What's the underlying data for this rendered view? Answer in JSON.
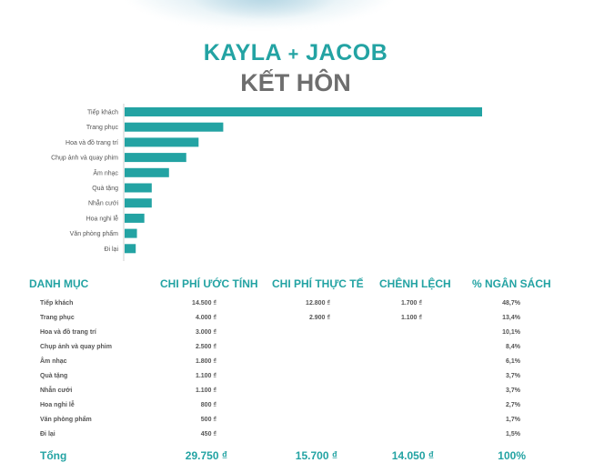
{
  "header": {
    "line1_names": "KAYLA",
    "line1_plus": "+",
    "line1_names2": "JACOB",
    "line2": "KẾT HÔN"
  },
  "colors": {
    "accent": "#23a3a3",
    "title_gray": "#6e6e6e",
    "bar": "#23a3a3"
  },
  "chart_data": {
    "type": "bar",
    "orientation": "horizontal",
    "categories": [
      "Tiếp khách",
      "Trang phục",
      "Hoa và đồ trang trí",
      "Chụp ảnh và quay phim",
      "Âm nhạc",
      "Quà tặng",
      "Nhẫn cưới",
      "Hoa nghi lễ",
      "Văn phòng phẩm",
      "Đi lại"
    ],
    "values": [
      14500,
      4000,
      3000,
      2500,
      1800,
      1100,
      1100,
      800,
      500,
      450
    ],
    "xlim": [
      0,
      14500
    ],
    "grid": false
  },
  "table": {
    "headers": [
      "DANH MỤC",
      "CHI PHÍ ƯỚC TÍNH",
      "CHI PHÍ THỰC TẾ",
      "CHÊNH LỆCH",
      "% NGÂN SÁCH"
    ],
    "rows": [
      {
        "category": "Tiếp khách",
        "estimated": "14.500 ₫",
        "actual": "12.800 ₫",
        "diff": "1.700 ₫",
        "pct": "48,7%"
      },
      {
        "category": "Trang phục",
        "estimated": "4.000 ₫",
        "actual": "2.900 ₫",
        "diff": "1.100 ₫",
        "pct": "13,4%"
      },
      {
        "category": "Hoa và đồ trang trí",
        "estimated": "3.000 ₫",
        "actual": "",
        "diff": "",
        "pct": "10,1%"
      },
      {
        "category": "Chụp ảnh và quay phim",
        "estimated": "2.500 ₫",
        "actual": "",
        "diff": "",
        "pct": "8,4%"
      },
      {
        "category": "Âm nhạc",
        "estimated": "1.800 ₫",
        "actual": "",
        "diff": "",
        "pct": "6,1%"
      },
      {
        "category": "Quà tặng",
        "estimated": "1.100 ₫",
        "actual": "",
        "diff": "",
        "pct": "3,7%"
      },
      {
        "category": "Nhẫn cưới",
        "estimated": "1.100 ₫",
        "actual": "",
        "diff": "",
        "pct": "3,7%"
      },
      {
        "category": "Hoa nghi lễ",
        "estimated": "800 ₫",
        "actual": "",
        "diff": "",
        "pct": "2,7%"
      },
      {
        "category": "Văn phòng phẩm",
        "estimated": "500 ₫",
        "actual": "",
        "diff": "",
        "pct": "1,7%"
      },
      {
        "category": "Đi lại",
        "estimated": "450 ₫",
        "actual": "",
        "diff": "",
        "pct": "1,5%"
      }
    ],
    "total": {
      "label": "Tổng",
      "estimated": "29.750 ₫",
      "actual": "15.700 ₫",
      "diff": "14.050 ₫",
      "pct": "100%"
    }
  }
}
